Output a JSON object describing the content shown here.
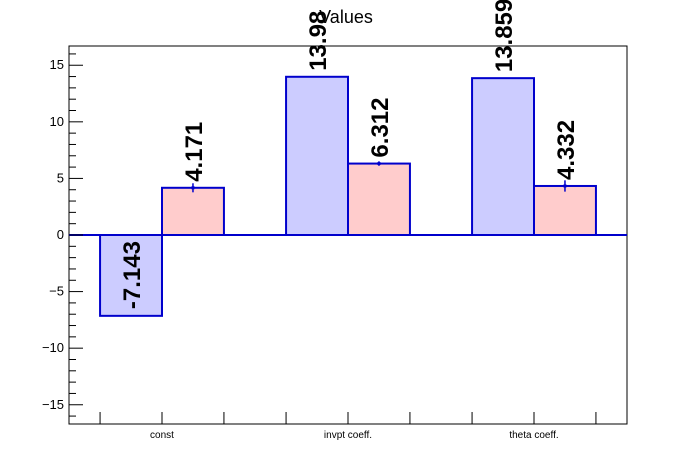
{
  "chart_data": {
    "type": "bar",
    "title": "Values",
    "categories": [
      "const",
      "invpt coeff.",
      "theta coeff."
    ],
    "series": [
      {
        "values": [
          -7.143,
          13.98,
          13.859
        ],
        "color": "#ccccff",
        "edge": "#0000cc"
      },
      {
        "values": [
          4.171,
          6.312,
          4.332
        ],
        "errors": [
          0.4,
          0.2,
          0.5
        ],
        "color": "#ffcccc",
        "edge": "#0000cc"
      }
    ],
    "data_labels": [
      [
        "-7.143",
        "13.98",
        "13.859"
      ],
      [
        "4.171",
        "6.312",
        "4.332"
      ]
    ],
    "ylim": [
      -16.7,
      16.7
    ],
    "yticks": [
      -15,
      -10,
      -5,
      0,
      5,
      10,
      15
    ],
    "xlabel": "",
    "ylabel": "",
    "grid": false
  }
}
